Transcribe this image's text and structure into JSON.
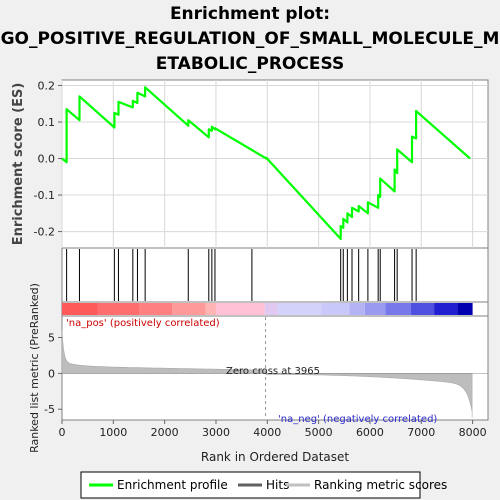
{
  "chart_data": {
    "type": "line",
    "title_lines": [
      "Enrichment plot:",
      "GO_POSITIVE_REGULATION_OF_SMALL_MOLECULE_M",
      "ETABOLIC_PROCESS"
    ],
    "xlabel": "Rank in Ordered Dataset",
    "xlim": [
      0,
      8300
    ],
    "xticks": [
      0,
      1000,
      2000,
      3000,
      4000,
      5000,
      6000,
      7000,
      8000
    ],
    "es_panel": {
      "ylabel": "Enrichment score (ES)",
      "ylim": [
        -0.245,
        0.215
      ],
      "yticks": [
        -0.2,
        -0.1,
        0.0,
        0.1,
        0.2
      ],
      "ytick_labels": [
        "-0.2",
        "-0.1",
        "0.0",
        "0.1",
        "0.2"
      ],
      "series": [
        {
          "name": "Enrichment profile",
          "color": "#00ff00",
          "x": [
            0,
            90,
            90,
            340,
            340,
            1020,
            1020,
            1100,
            1100,
            1380,
            1380,
            1470,
            1470,
            1620,
            1620,
            2460,
            2460,
            2860,
            2860,
            2920,
            2920,
            2980,
            2980,
            3980,
            3980,
            5430,
            5430,
            5480,
            5480,
            5560,
            5560,
            5650,
            5650,
            5780,
            5780,
            5960,
            5960,
            6160,
            6160,
            6200,
            6200,
            6480,
            6480,
            6530,
            6530,
            6820,
            6820,
            6900,
            6900,
            7950
          ],
          "y": [
            0.0,
            -0.01,
            0.135,
            0.105,
            0.17,
            0.085,
            0.125,
            0.12,
            0.155,
            0.14,
            0.158,
            0.152,
            0.18,
            0.17,
            0.195,
            0.09,
            0.105,
            0.058,
            0.08,
            0.076,
            0.087,
            0.08,
            0.083,
            0.0,
            0.002,
            -0.22,
            -0.185,
            -0.19,
            -0.165,
            -0.175,
            -0.15,
            -0.16,
            -0.135,
            -0.145,
            -0.13,
            -0.15,
            -0.12,
            -0.135,
            -0.1,
            -0.105,
            -0.055,
            -0.09,
            -0.03,
            -0.04,
            0.025,
            -0.01,
            0.06,
            0.055,
            0.13,
            0.0
          ]
        }
      ]
    },
    "hits": [
      90,
      340,
      1020,
      1100,
      1380,
      1470,
      1620,
      2460,
      2860,
      2920,
      2980,
      3700,
      5430,
      5480,
      5560,
      5650,
      5780,
      5960,
      6160,
      6200,
      6480,
      6530,
      6820,
      6900
    ],
    "heatmap": {
      "colors": [
        "#ff5a5a",
        "#ff6e6e",
        "#ff8080",
        "#ff9a9a",
        "#ffb4b4",
        "#ffc0d6",
        "#e0c8f0",
        "#d2d2fa",
        "#c8c8fa",
        "#b4b4f5",
        "#9a9af0",
        "#7878eb",
        "#5050e0",
        "#2020d0",
        "#0000b0"
      ],
      "stops": [
        0,
        700,
        1500,
        2150,
        2800,
        3000,
        3950,
        4200,
        5050,
        5600,
        5900,
        6300,
        6800,
        7250,
        7700,
        8000
      ]
    },
    "metric_panel": {
      "ylabel": "Ranked list metric (PreRanked)",
      "ylim": [
        -6.5,
        8.0
      ],
      "yticks": [
        -5,
        0,
        5
      ],
      "ytick_labels": [
        "-5",
        "0",
        "5"
      ],
      "zero_cross": 3965,
      "zero_cross_label": "Zero cross at 3965",
      "pos_label": "'na_pos' (positively correlated)",
      "neg_label": "'na_neg' (negatively correlated)"
    },
    "legend": {
      "entries": [
        {
          "label": "Enrichment profile",
          "color": "#00ff00"
        },
        {
          "label": "Hits",
          "color": "#606060"
        },
        {
          "label": "Ranking metric scores",
          "color": "#c0c0c0"
        }
      ],
      "placement": "bottom"
    }
  }
}
